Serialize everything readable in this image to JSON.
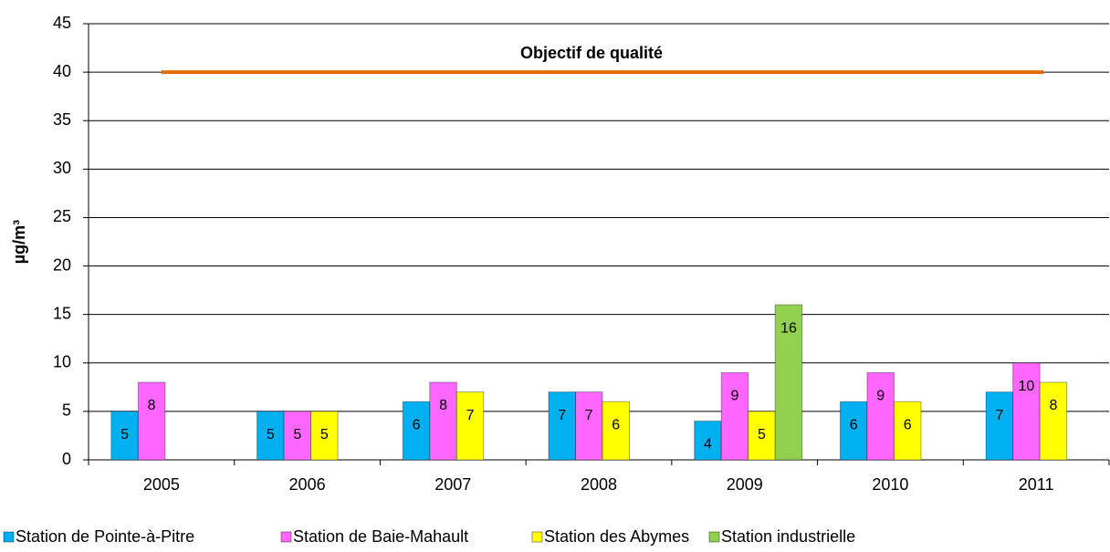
{
  "chart_data": {
    "type": "bar",
    "y_label": "µg/m³",
    "categories": [
      "2005",
      "2006",
      "2007",
      "2008",
      "2009",
      "2010",
      "2011"
    ],
    "series": [
      {
        "name": "Station de Pointe-à-Pitre",
        "color": "#00b0f0",
        "values": [
          5,
          5,
          6,
          7,
          4,
          6,
          7
        ]
      },
      {
        "name": "Station de Baie-Mahault",
        "color": "#ff66ff",
        "values": [
          8,
          5,
          8,
          7,
          9,
          9,
          10
        ]
      },
      {
        "name": "Station des Abymes",
        "color": "#ffff00",
        "values": [
          null,
          5,
          7,
          6,
          5,
          6,
          8
        ]
      },
      {
        "name": "Station industrielle",
        "color": "#92d050",
        "values": [
          null,
          null,
          null,
          null,
          16,
          null,
          null
        ]
      }
    ],
    "ylim": [
      0,
      45
    ],
    "yticks": [
      0,
      5,
      10,
      15,
      20,
      25,
      30,
      35,
      40,
      45
    ],
    "grid": true,
    "legend": "bottom",
    "annotations": [
      {
        "text": "Objectif de qualité",
        "value": 40,
        "color": "#e36c09"
      }
    ]
  }
}
